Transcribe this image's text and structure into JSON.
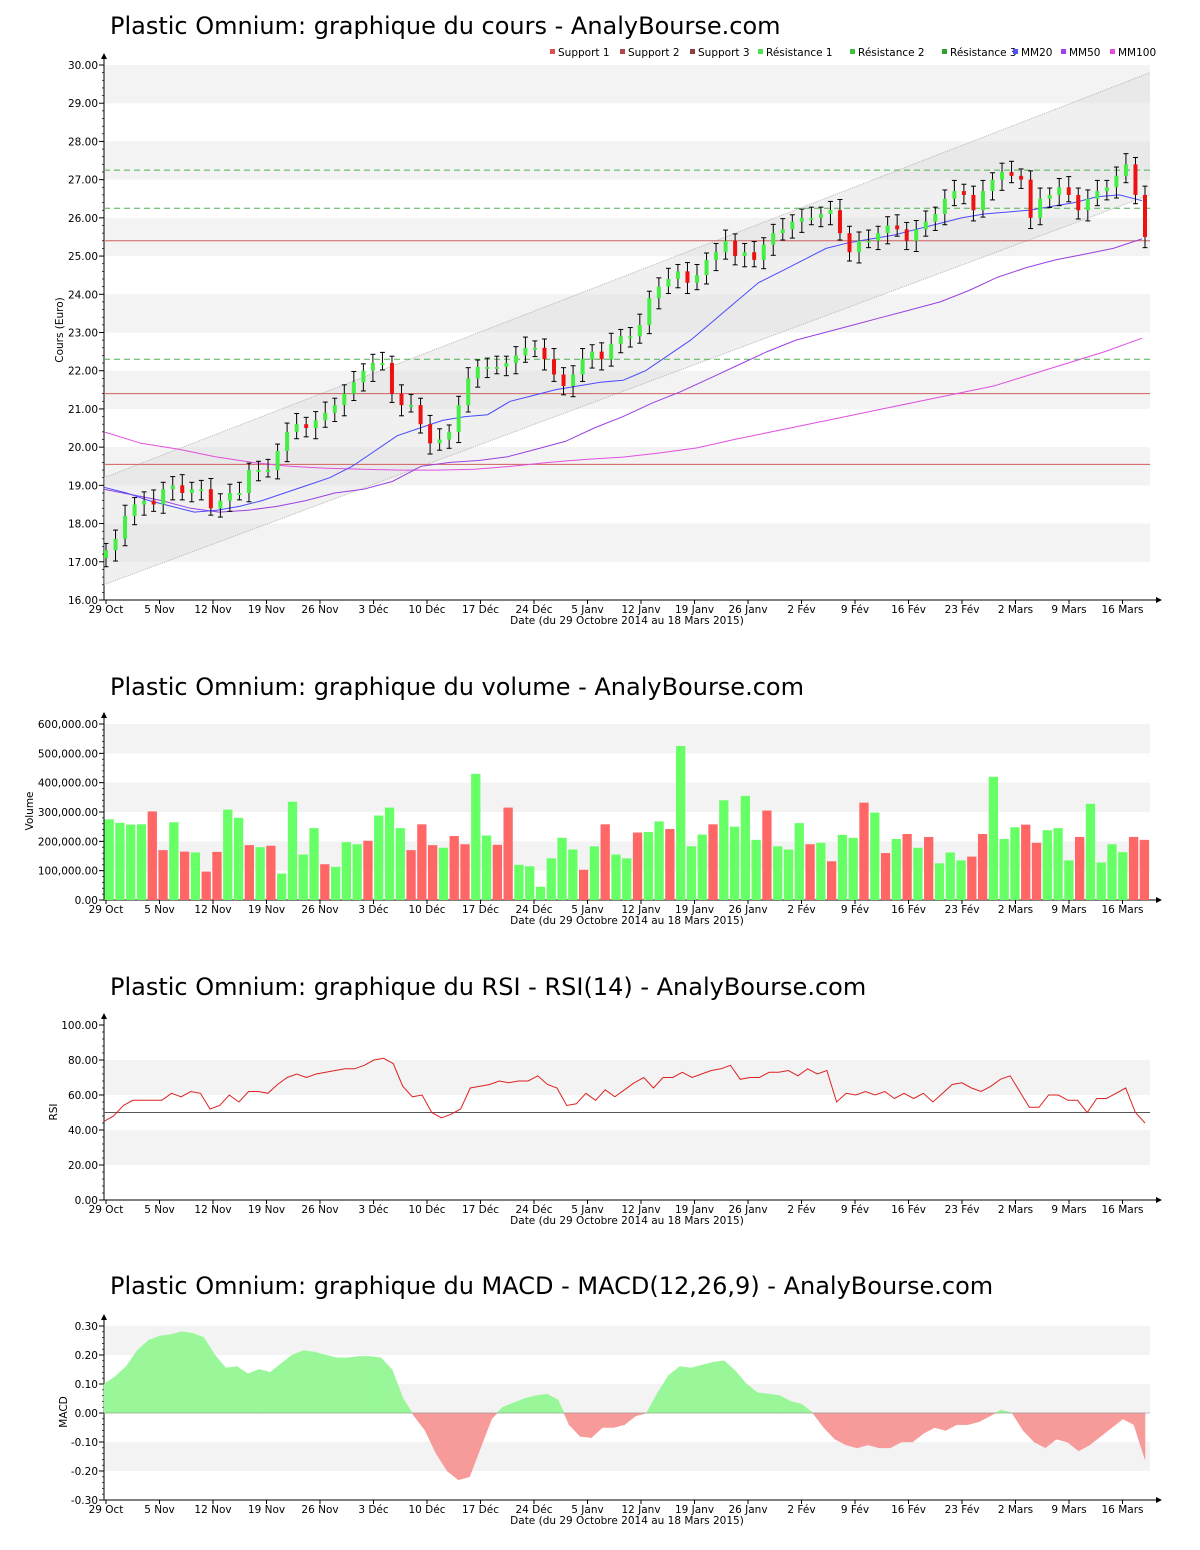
{
  "chart_data": [
    {
      "id": "price",
      "type": "candlestick",
      "title": "Plastic Omnium: graphique du cours - AnalyBourse.com",
      "ylabel": "Cours (Euro)",
      "xlabel": "Date (du 29 Octobre 2014 au 18 Mars 2015)",
      "ylim": [
        16,
        30
      ],
      "yticks": [
        "16.00",
        "17.00",
        "18.00",
        "19.00",
        "20.00",
        "21.00",
        "22.00",
        "23.00",
        "24.00",
        "25.00",
        "26.00",
        "27.00",
        "28.00",
        "29.00",
        "30.00"
      ],
      "xticks": [
        "29 Oct",
        "5 Nov",
        "12 Nov",
        "19 Nov",
        "26 Nov",
        "3 Déc",
        "10 Déc",
        "17 Déc",
        "24 Déc",
        "5 Janv",
        "12 Janv",
        "19 Janv",
        "26 Janv",
        "2 Fév",
        "9 Fév",
        "16 Fév",
        "23 Fév",
        "2 Mars",
        "9 Mars",
        "16 Mars"
      ],
      "grid": true,
      "legend_position": "top-right",
      "legend": [
        {
          "label": "Support 1",
          "color": "#e05050"
        },
        {
          "label": "Support 2",
          "color": "#b04848"
        },
        {
          "label": "Support 3",
          "color": "#904040"
        },
        {
          "label": "Résistance 1",
          "color": "#50e050"
        },
        {
          "label": "Résistance 2",
          "color": "#40c040"
        },
        {
          "label": "Résistance 3",
          "color": "#30a030"
        },
        {
          "label": "MM20",
          "color": "#5050ff"
        },
        {
          "label": "MM50",
          "color": "#a040f0"
        },
        {
          "label": "MM100",
          "color": "#e050e0"
        }
      ],
      "support_levels": [
        25.4,
        21.4,
        19.55
      ],
      "resistance_levels": [
        27.25,
        26.25,
        22.3
      ],
      "channel": {
        "lower": [
          16.4,
          26.6
        ],
        "upper": [
          19.2,
          29.8
        ]
      },
      "close": [
        17.3,
        17.6,
        18.2,
        18.5,
        18.6,
        18.5,
        18.9,
        19.0,
        18.8,
        18.9,
        18.9,
        18.4,
        18.6,
        18.8,
        18.8,
        19.4,
        19.4,
        19.4,
        19.9,
        20.4,
        20.6,
        20.5,
        20.7,
        20.9,
        21.1,
        21.4,
        21.7,
        22.0,
        22.2,
        22.2,
        21.4,
        21.1,
        21.1,
        20.6,
        20.1,
        20.2,
        20.4,
        21.1,
        21.8,
        22.1,
        22.1,
        22.1,
        22.2,
        22.4,
        22.6,
        22.6,
        22.3,
        21.9,
        21.6,
        21.9,
        22.3,
        22.5,
        22.3,
        22.7,
        22.9,
        22.9,
        23.2,
        23.9,
        24.2,
        24.4,
        24.6,
        24.3,
        24.5,
        24.9,
        25.1,
        25.4,
        25.0,
        25.1,
        24.9,
        25.3,
        25.6,
        25.7,
        25.9,
        26.0,
        26.0,
        26.1,
        26.2,
        25.6,
        25.1,
        25.4,
        25.4,
        25.6,
        25.8,
        25.7,
        25.4,
        25.7,
        25.9,
        26.1,
        26.5,
        26.7,
        26.6,
        26.2,
        26.7,
        27.0,
        27.2,
        27.1,
        27.0,
        26.0,
        26.5,
        26.6,
        26.8,
        26.6,
        26.2,
        26.5,
        26.7,
        26.8,
        27.1,
        27.4,
        26.6,
        25.5
      ],
      "mm20": [
        18.95,
        18.8,
        18.6,
        18.45,
        18.3,
        18.35,
        18.45,
        18.6,
        18.8,
        19.0,
        19.2,
        19.5,
        19.9,
        20.3,
        20.5,
        20.7,
        20.8,
        20.85,
        21.2,
        21.35,
        21.5,
        21.6,
        21.7,
        21.75,
        22.0,
        22.4,
        22.8,
        23.3,
        23.8,
        24.3,
        24.6,
        24.9,
        25.2,
        25.35,
        25.45,
        25.55,
        25.7,
        25.85,
        26.0,
        26.1,
        26.15,
        26.2,
        26.3,
        26.4,
        26.55,
        26.6,
        26.45
      ],
      "mm50": [
        18.9,
        18.75,
        18.6,
        18.4,
        18.3,
        18.35,
        18.45,
        18.6,
        18.8,
        18.9,
        19.1,
        19.5,
        19.6,
        19.65,
        19.75,
        19.95,
        20.15,
        20.5,
        20.8,
        21.15,
        21.45,
        21.8,
        22.15,
        22.5,
        22.8,
        23.0,
        23.2,
        23.4,
        23.6,
        23.8,
        24.1,
        24.45,
        24.7,
        24.9,
        25.05,
        25.2,
        25.45
      ],
      "mm100": [
        20.4,
        20.1,
        19.95,
        19.75,
        19.6,
        19.5,
        19.45,
        19.42,
        19.4,
        19.4,
        19.42,
        19.5,
        19.6,
        19.68,
        19.74,
        19.85,
        19.98,
        20.2,
        20.4,
        20.6,
        20.8,
        21.0,
        21.2,
        21.4,
        21.6,
        21.9,
        22.2,
        22.5,
        22.85
      ]
    },
    {
      "id": "volume",
      "type": "bar",
      "title": "Plastic Omnium: graphique du volume - AnalyBourse.com",
      "ylabel": "Volume",
      "xlabel": "Date (du 29 Octobre 2014 au 18 Mars 2015)",
      "ylim": [
        0,
        600000
      ],
      "yticks": [
        "0.00",
        "100,000.00",
        "200,000.00",
        "300,000.00",
        "400,000.00",
        "500,000.00",
        "600,000.00"
      ],
      "values": [
        275000,
        263000,
        257000,
        258000,
        302000,
        170000,
        265000,
        165000,
        162000,
        97000,
        164000,
        308000,
        280000,
        187000,
        180000,
        185000,
        90000,
        335000,
        155000,
        245000,
        122000,
        113000,
        197000,
        190000,
        202000,
        288000,
        315000,
        245000,
        170000,
        258000,
        187000,
        178000,
        218000,
        190000,
        430000,
        220000,
        188000,
        315000,
        120000,
        115000,
        45000,
        142000,
        212000,
        172000,
        103000,
        183000,
        258000,
        155000,
        142000,
        230000,
        232000,
        268000,
        242000,
        525000,
        183000,
        223000,
        258000,
        340000,
        250000,
        355000,
        205000,
        305000,
        183000,
        172000,
        262000,
        190000,
        195000,
        132000,
        222000,
        212000,
        332000,
        298000,
        160000,
        208000,
        225000,
        178000,
        215000,
        125000,
        162000,
        135000,
        148000,
        225000,
        420000,
        208000,
        248000,
        257000,
        195000,
        238000,
        245000,
        135000,
        215000,
        328000,
        128000,
        190000,
        163000,
        215000,
        205000
      ],
      "colors": [
        "g",
        "g",
        "g",
        "g",
        "r",
        "r",
        "g",
        "r",
        "g",
        "r",
        "r",
        "g",
        "g",
        "r",
        "g",
        "r",
        "g",
        "g",
        "g",
        "g",
        "r",
        "g",
        "g",
        "g",
        "r",
        "g",
        "g",
        "g",
        "r",
        "r",
        "r",
        "g",
        "r",
        "r",
        "g",
        "g",
        "r",
        "r",
        "g",
        "g",
        "g",
        "g",
        "g",
        "g",
        "r",
        "g",
        "r",
        "g",
        "g",
        "r",
        "g",
        "g",
        "r",
        "g",
        "g",
        "g",
        "r",
        "g",
        "g",
        "g",
        "g",
        "r",
        "g",
        "g",
        "g",
        "r",
        "g",
        "r",
        "g",
        "g",
        "r",
        "g",
        "r",
        "g",
        "r",
        "g",
        "r",
        "g",
        "g",
        "g",
        "r",
        "r",
        "g",
        "g",
        "g",
        "r",
        "r",
        "g",
        "g",
        "g",
        "r",
        "g",
        "g",
        "g",
        "g",
        "r",
        "r"
      ],
      "xticks": [
        "29 Oct",
        "5 Nov",
        "12 Nov",
        "19 Nov",
        "26 Nov",
        "3 Déc",
        "10 Déc",
        "17 Déc",
        "24 Déc",
        "5 Janv",
        "12 Janv",
        "19 Janv",
        "26 Janv",
        "2 Fév",
        "9 Fév",
        "16 Fév",
        "23 Fév",
        "2 Mars",
        "9 Mars",
        "16 Mars"
      ],
      "grid": true
    },
    {
      "id": "rsi",
      "type": "line",
      "title": "Plastic Omnium: graphique du RSI - RSI(14) - AnalyBourse.com",
      "ylabel": "RSI",
      "xlabel": "Date (du 29 Octobre 2014 au 18 Mars 2015)",
      "ylim": [
        0,
        100
      ],
      "yticks": [
        "0.00",
        "20.00",
        "40.00",
        "60.00",
        "80.00",
        "100.00"
      ],
      "reference": 50,
      "values": [
        45,
        48,
        54,
        57,
        57,
        57,
        57,
        61,
        59,
        62,
        61,
        52,
        54,
        60,
        56,
        62,
        62,
        61,
        66,
        70,
        72,
        70,
        72,
        73,
        74,
        75,
        75,
        77,
        80,
        81,
        78,
        65,
        59,
        60,
        50,
        47,
        49,
        52,
        64,
        65,
        66,
        68,
        67,
        68,
        68,
        71,
        66,
        64,
        54,
        55,
        61,
        57,
        63,
        59,
        63,
        67,
        70,
        64,
        70,
        70,
        73,
        70,
        72,
        74,
        75,
        77,
        69,
        70,
        70,
        73,
        73,
        74,
        71,
        75,
        72,
        74,
        56,
        61,
        60,
        62,
        60,
        62,
        58,
        61,
        58,
        61,
        56,
        61,
        66,
        67,
        64,
        62,
        65,
        69,
        71,
        62,
        53,
        53,
        60,
        60,
        57,
        57,
        50,
        58,
        58,
        61,
        64,
        50,
        44
      ],
      "xticks": [
        "29 Oct",
        "5 Nov",
        "12 Nov",
        "19 Nov",
        "26 Nov",
        "3 Déc",
        "10 Déc",
        "17 Déc",
        "24 Déc",
        "5 Janv",
        "12 Janv",
        "19 Janv",
        "26 Janv",
        "2 Fév",
        "9 Fév",
        "16 Fév",
        "23 Fév",
        "2 Mars",
        "9 Mars",
        "16 Mars"
      ],
      "grid": true
    },
    {
      "id": "macd",
      "type": "area",
      "title": "Plastic Omnium: graphique du MACD - MACD(12,26,9) - AnalyBourse.com",
      "ylabel": "MACD",
      "xlabel": "Date (du 29 Octobre 2014 au 18 Mars 2015)",
      "ylim": [
        -0.3,
        0.3
      ],
      "yticks": [
        "-0.30",
        "-0.20",
        "-0.10",
        "0.00",
        "0.10",
        "0.20",
        "0.30"
      ],
      "values": [
        0.1,
        0.125,
        0.16,
        0.215,
        0.25,
        0.265,
        0.27,
        0.28,
        0.275,
        0.26,
        0.2,
        0.155,
        0.16,
        0.135,
        0.15,
        0.14,
        0.17,
        0.2,
        0.215,
        0.21,
        0.2,
        0.19,
        0.19,
        0.195,
        0.195,
        0.19,
        0.15,
        0.05,
        -0.01,
        -0.06,
        -0.14,
        -0.2,
        -0.23,
        -0.22,
        -0.12,
        -0.02,
        0.02,
        0.035,
        0.05,
        0.06,
        0.065,
        0.045,
        -0.04,
        -0.08,
        -0.085,
        -0.05,
        -0.05,
        -0.04,
        -0.01,
        0.0,
        0.07,
        0.13,
        0.16,
        0.155,
        0.165,
        0.175,
        0.18,
        0.145,
        0.1,
        0.07,
        0.065,
        0.06,
        0.04,
        0.03,
        0.0,
        -0.05,
        -0.09,
        -0.11,
        -0.12,
        -0.11,
        -0.12,
        -0.12,
        -0.1,
        -0.1,
        -0.07,
        -0.05,
        -0.06,
        -0.04,
        -0.04,
        -0.03,
        -0.01,
        0.01,
        0.0,
        -0.06,
        -0.1,
        -0.12,
        -0.09,
        -0.1,
        -0.13,
        -0.11,
        -0.08,
        -0.05,
        -0.02,
        -0.04,
        -0.16
      ],
      "xticks": [
        "29 Oct",
        "5 Nov",
        "12 Nov",
        "19 Nov",
        "26 Nov",
        "3 Déc",
        "10 Déc",
        "17 Déc",
        "24 Déc",
        "5 Janv",
        "12 Janv",
        "19 Janv",
        "26 Janv",
        "2 Fév",
        "9 Fév",
        "16 Fév",
        "23 Fév",
        "2 Mars",
        "9 Mars",
        "16 Mars"
      ],
      "grid": true
    }
  ]
}
